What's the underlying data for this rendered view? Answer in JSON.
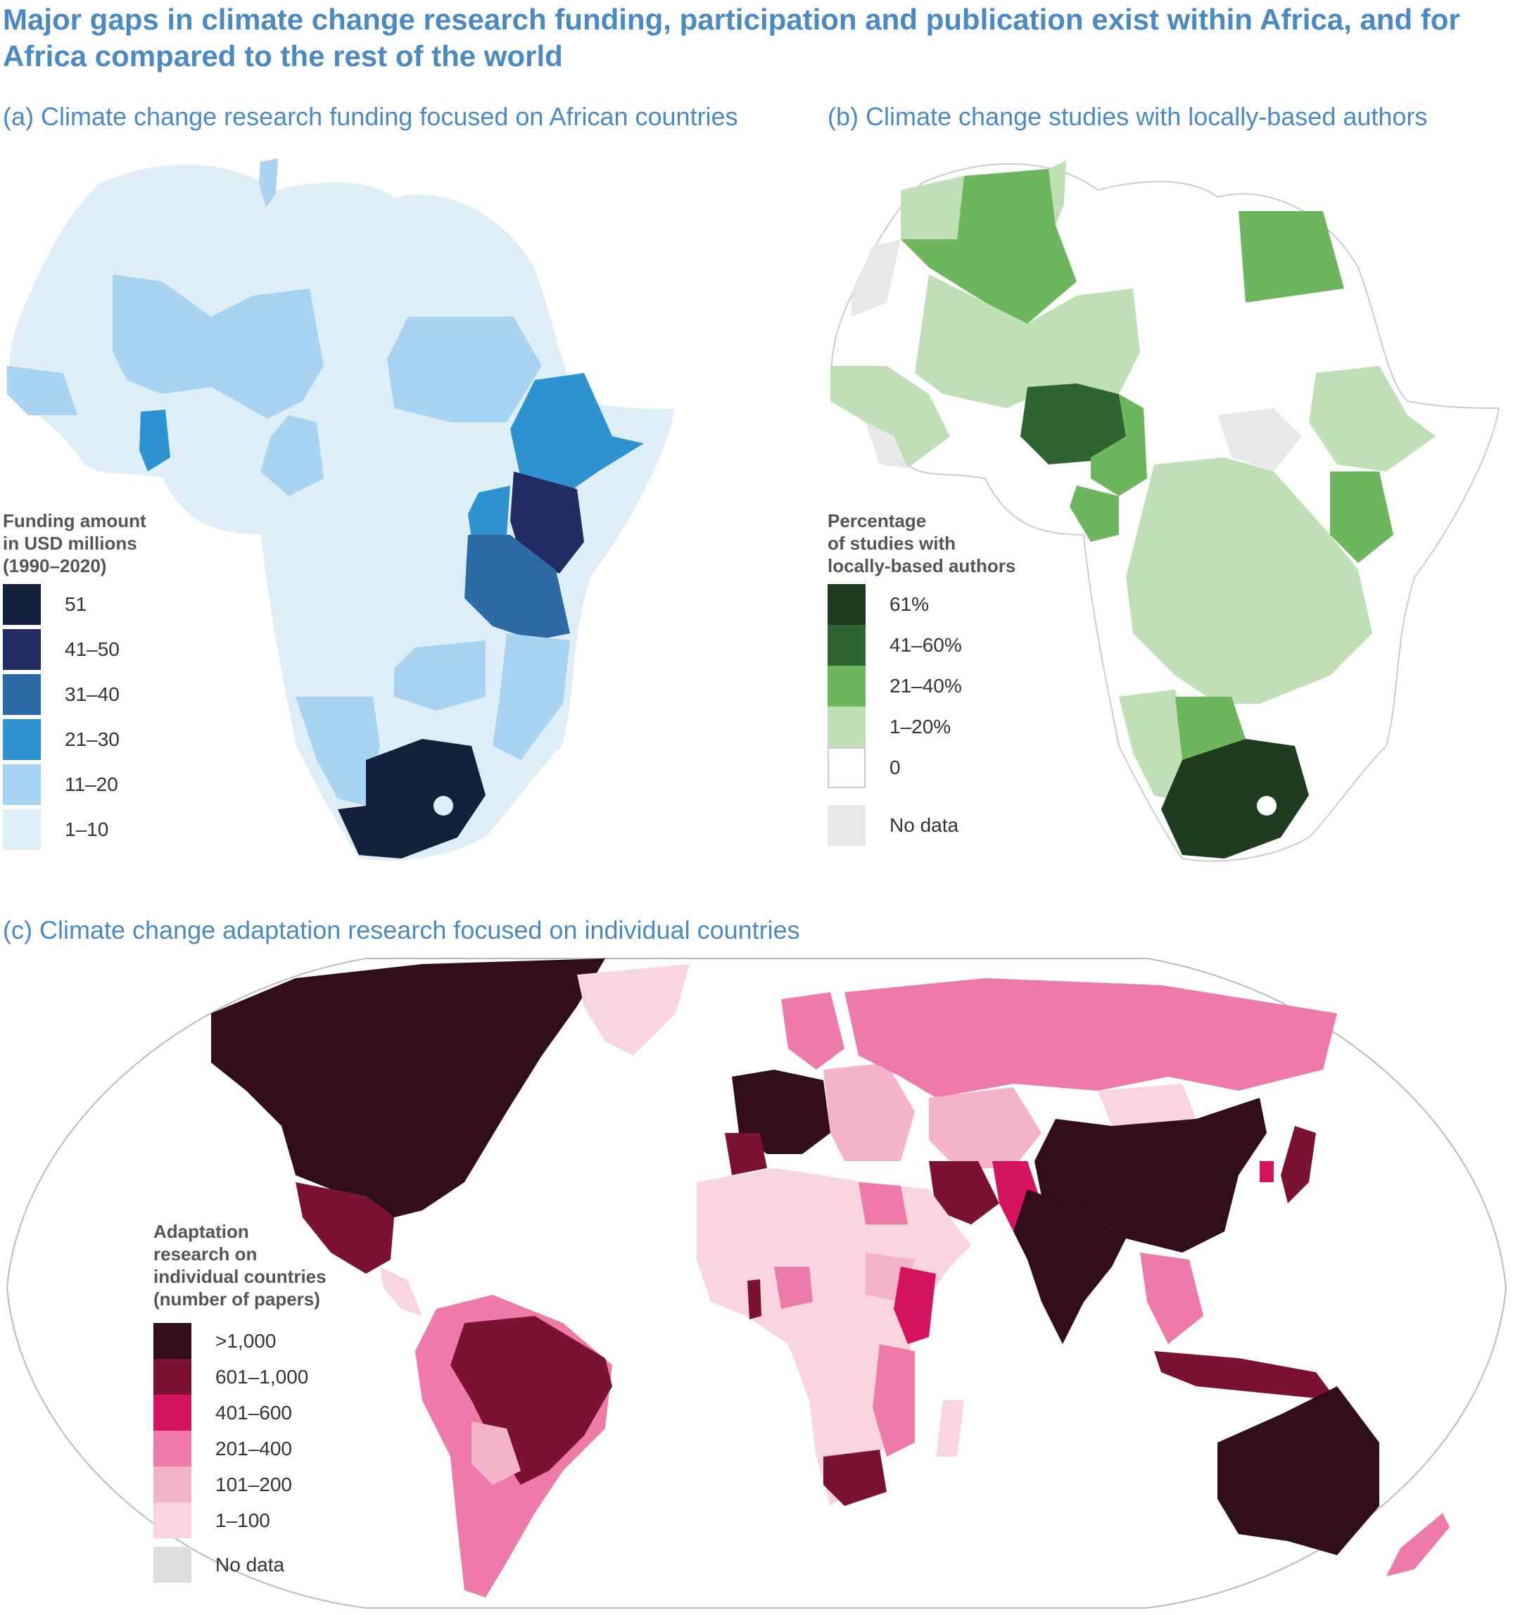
{
  "title": "Major gaps in climate change research funding, participation and publication exist within Africa, and for Africa compared to the rest of the world",
  "panels": {
    "a": {
      "subtitle": "(a) Climate change research funding focused on African countries",
      "legend_title": "Funding amount\nin USD millions\n(1990–2020)",
      "legend": [
        {
          "label": "51",
          "color": "#13213d"
        },
        {
          "label": "41–50",
          "color": "#232b63"
        },
        {
          "label": "31–40",
          "color": "#2b6aa3"
        },
        {
          "label": "21–30",
          "color": "#2e93d1"
        },
        {
          "label": "11–20",
          "color": "#a9d4f1"
        },
        {
          "label": "1–10",
          "color": "#deeef7"
        }
      ]
    },
    "b": {
      "subtitle": "(b) Climate change studies with locally-based authors",
      "legend_title": "Percentage\nof studies with\nlocally-based authors",
      "legend": [
        {
          "label": "61%",
          "color": "#1e3d1e"
        },
        {
          "label": "41–60%",
          "color": "#2f6530"
        },
        {
          "label": "21–40%",
          "color": "#6db65e"
        },
        {
          "label": "1–20%",
          "color": "#bfdfb5"
        },
        {
          "label": "0",
          "color": "#ffffff"
        },
        {
          "label": "No data",
          "color": "#e8e8e8"
        }
      ]
    },
    "c": {
      "subtitle": "(c) Climate change adaptation research focused on individual countries",
      "legend_title": "Adaptation\nresearch on\nindividual countries\n(number of papers)",
      "legend": [
        {
          "label": ">1,000",
          "color": "#310c1a"
        },
        {
          "label": "601–1,000",
          "color": "#7c1232"
        },
        {
          "label": "401–600",
          "color": "#d6135f"
        },
        {
          "label": "201–400",
          "color": "#ee7aa9"
        },
        {
          "label": "101–200",
          "color": "#f4b3c8"
        },
        {
          "label": "1–100",
          "color": "#f8d4df"
        },
        {
          "label": "No data",
          "color": "#dddddd"
        }
      ]
    }
  }
}
